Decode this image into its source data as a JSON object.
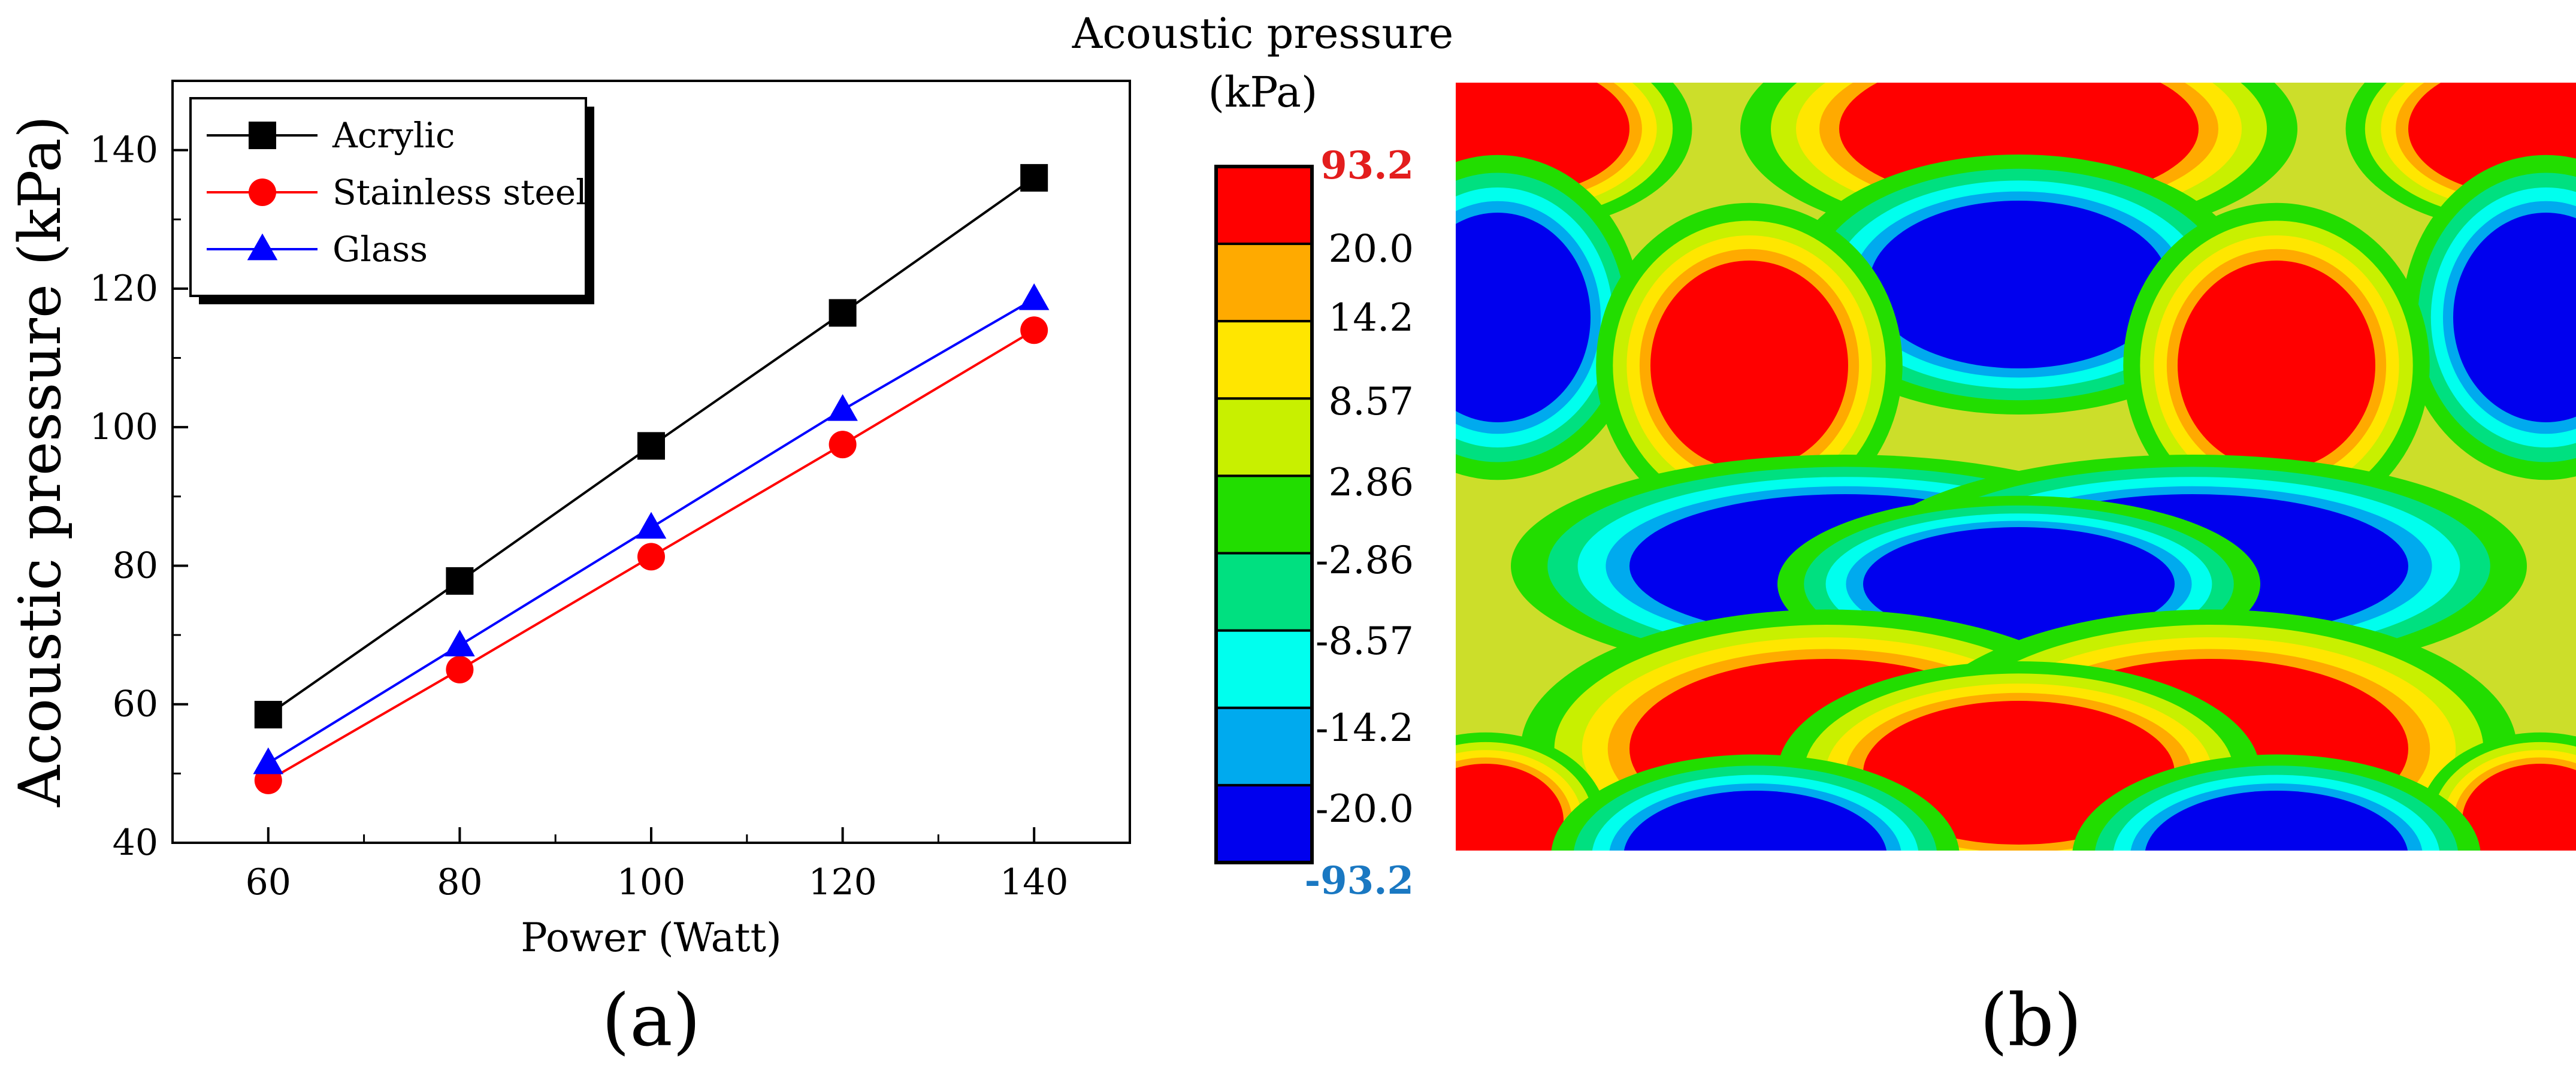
{
  "chart_data": [
    {
      "type": "line",
      "panel_label": "(a)",
      "xlabel": "Power (Watt)",
      "ylabel": "Acoustic pressure (kPa)",
      "xlim": [
        50,
        150
      ],
      "ylim": [
        40,
        150
      ],
      "x_ticks": [
        60,
        80,
        100,
        120,
        140
      ],
      "y_ticks": [
        40,
        60,
        80,
        100,
        120,
        140
      ],
      "grid": false,
      "legend_position": "top-left",
      "x": [
        60,
        80,
        100,
        120,
        140
      ],
      "series": [
        {
          "name": "Acrylic",
          "marker": "square",
          "color": "#000000",
          "values": [
            58.5,
            77.8,
            97.3,
            116.5,
            136
          ]
        },
        {
          "name": "Stainless steel",
          "marker": "circle",
          "color": "#ff0000",
          "values": [
            49,
            65,
            81.3,
            97.5,
            114
          ]
        },
        {
          "name": "Glass",
          "marker": "triangle",
          "color": "#0000ff",
          "values": [
            51.5,
            68.5,
            85.5,
            102.5,
            118.5
          ]
        }
      ]
    },
    {
      "type": "heatmap",
      "panel_label": "(b)",
      "title_line1": "Acoustic pressure",
      "title_line2": "(kPa)",
      "colorbar_labels": [
        "93.2",
        "20.0",
        "14.2",
        "8.57",
        "2.86",
        "-2.86",
        "-8.57",
        "-14.2",
        "-20.0",
        "-93.2"
      ],
      "colorbar_colors": [
        "#ff0000",
        "#ffaa00",
        "#ffe600",
        "#c8f000",
        "#22dd00",
        "#00e080",
        "#00ffee",
        "#00aaee",
        "#0000ee"
      ],
      "max_label_color": "#e31d1d",
      "min_label_color": "#1a78c2"
    }
  ]
}
